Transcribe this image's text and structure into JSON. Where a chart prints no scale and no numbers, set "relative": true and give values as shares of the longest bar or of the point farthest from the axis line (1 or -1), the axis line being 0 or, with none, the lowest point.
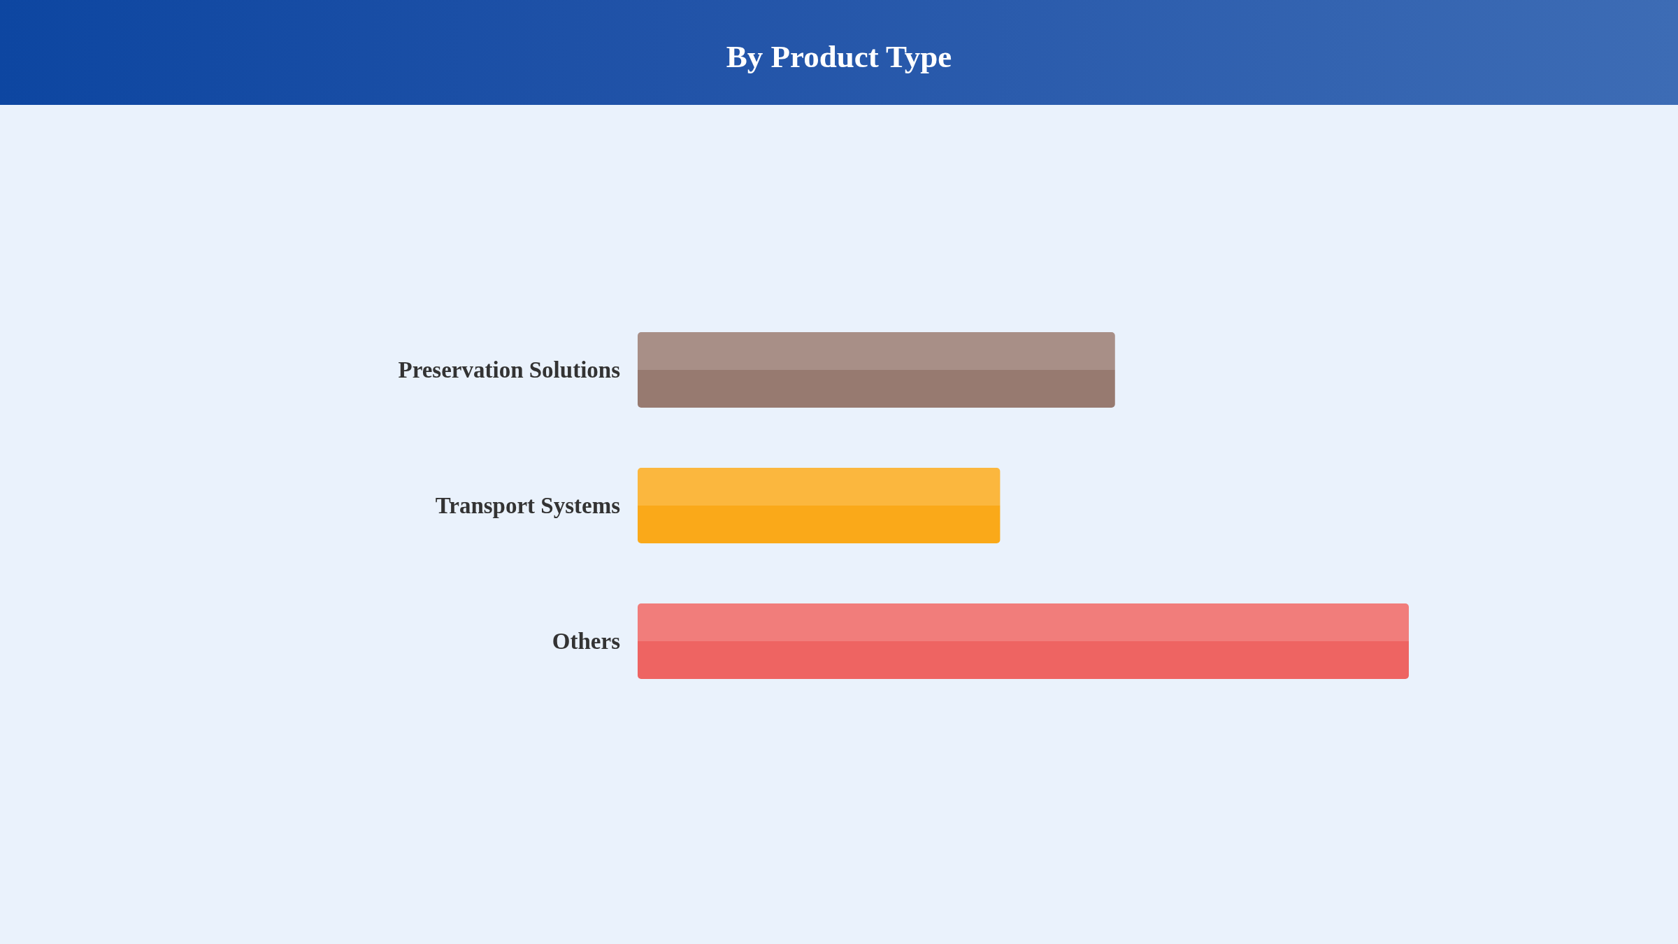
{
  "chart_data": {
    "type": "bar",
    "title": "By Product Type",
    "orientation": "horizontal",
    "relative": true,
    "categories": [
      "Preservation Solutions",
      "Transport Systems",
      "Others"
    ],
    "values": [
      0.619,
      0.47,
      1
    ],
    "colors": [
      "#977a70",
      "#faa919",
      "#ee6462"
    ]
  }
}
